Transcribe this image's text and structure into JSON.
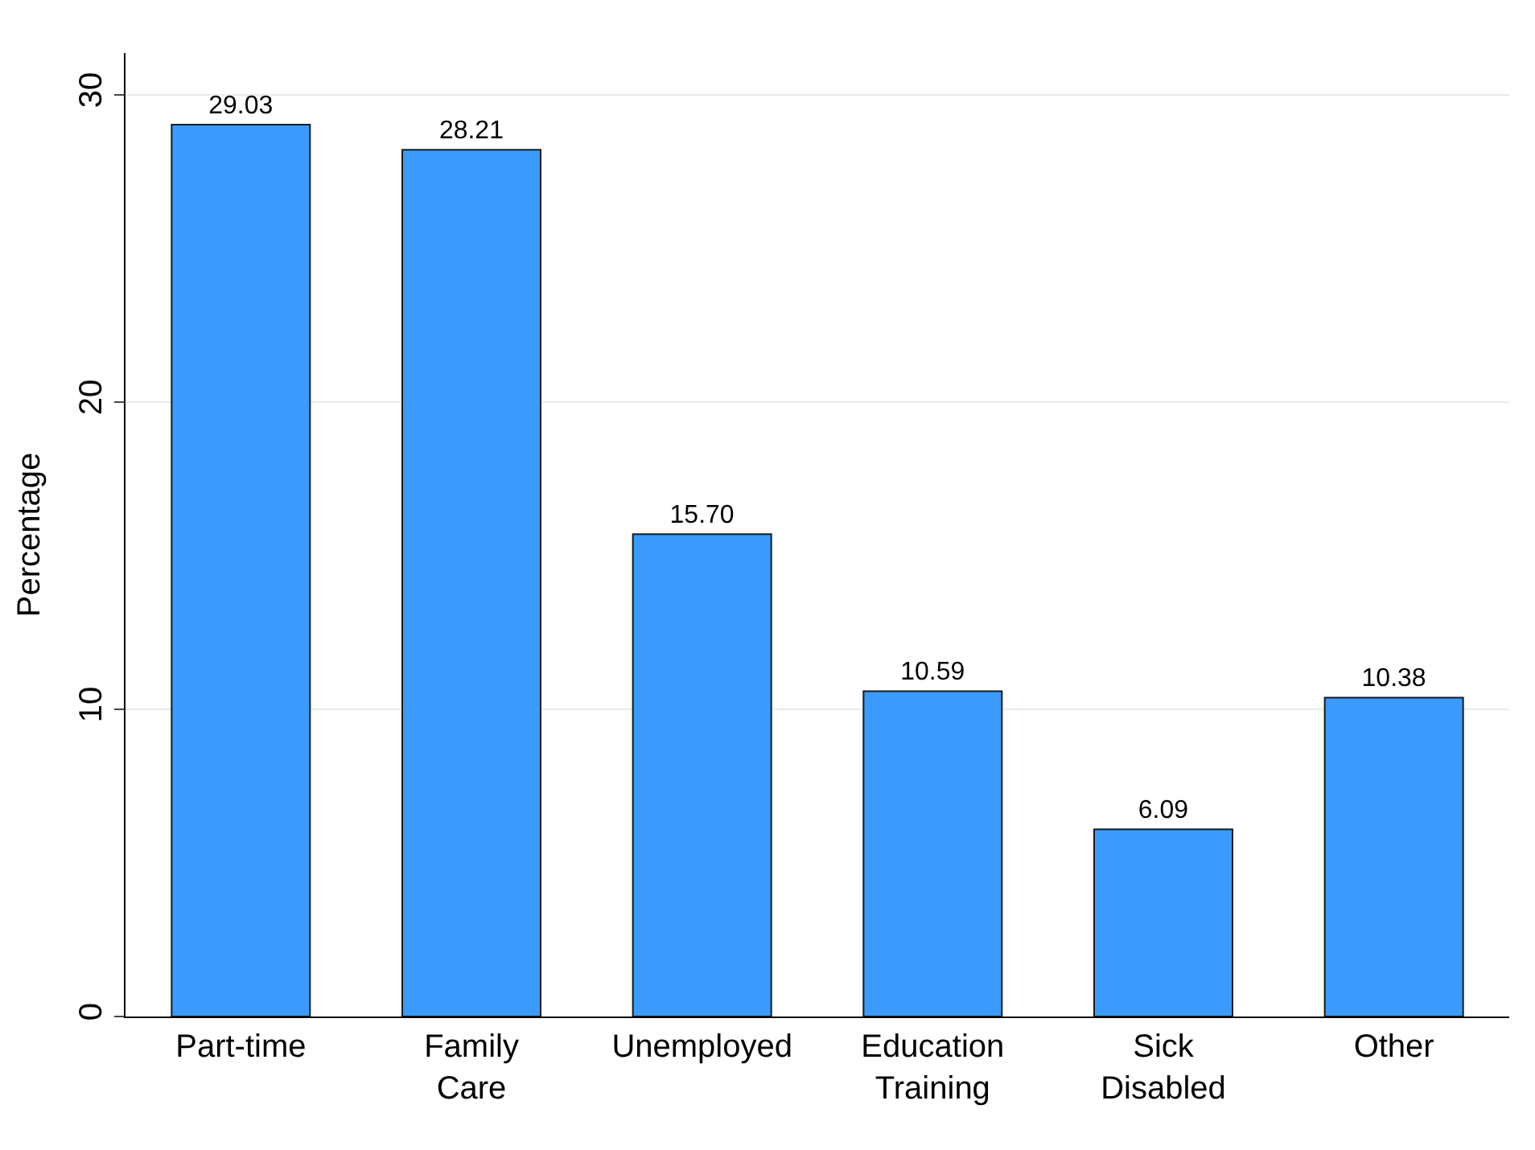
{
  "chart_data": {
    "type": "bar",
    "ylabel": "Percentage",
    "categories": [
      "Part-time",
      "Family\nCare",
      "Unemployed",
      "Education\nTraining",
      "Sick\nDisabled",
      "Other"
    ],
    "values": [
      29.03,
      28.21,
      15.7,
      10.59,
      6.09,
      10.38
    ],
    "value_labels": [
      "29.03",
      "28.21",
      "15.70",
      "10.59",
      "6.09",
      "10.38"
    ],
    "color": "#3a9bfd",
    "ylim": [
      0,
      31.36
    ],
    "yticks": [
      0,
      10,
      20,
      30
    ],
    "grid": "y",
    "legend": false
  }
}
